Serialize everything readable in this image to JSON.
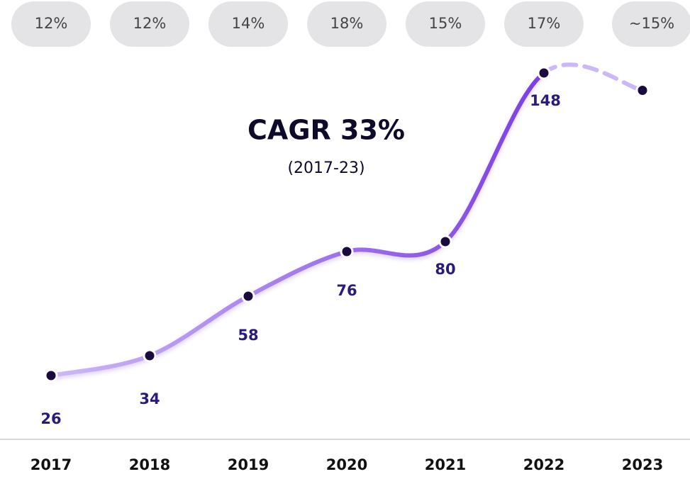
{
  "chart_data": {
    "type": "line",
    "title": "CAGR 33%",
    "subtitle": "(2017-23)",
    "growth_labels": [
      "12%",
      "12%",
      "14%",
      "18%",
      "15%",
      "17%",
      "~15%"
    ],
    "categories": [
      "2017",
      "2018",
      "2019",
      "2020",
      "2021",
      "2022",
      "2023"
    ],
    "values": [
      26,
      34,
      58,
      76,
      80,
      148,
      141
    ],
    "value_labels": [
      "26",
      "34",
      "58",
      "76",
      "80",
      "148",
      null
    ],
    "dashed_from": 5,
    "color": "#7b3fe4",
    "start_color": "#cdb8f7",
    "ylim": [
      0,
      160
    ]
  }
}
